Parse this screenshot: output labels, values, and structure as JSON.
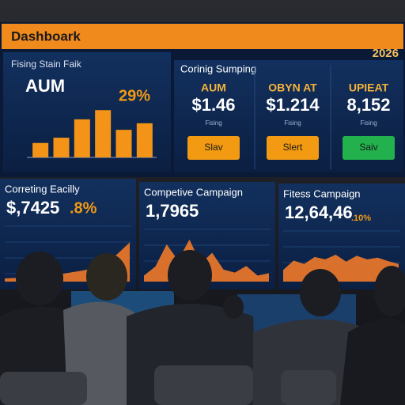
{
  "header": {
    "title": "Dashboark",
    "year": "2026"
  },
  "main_panel": {
    "title": "Fising Stain Faik",
    "metric": "AUM",
    "change": "29%",
    "chart": {
      "type": "bar",
      "values": [
        22,
        30,
        58,
        72,
        42,
        52
      ],
      "ylim": [
        0,
        100
      ]
    }
  },
  "kpi_section": {
    "title": "Corinig Sumping"
  },
  "kpis": [
    {
      "label": "AUM",
      "value": "$1.46",
      "sub": "Fising",
      "button": "Slav",
      "button_color": "#f29a12"
    },
    {
      "label": "OBYN AT",
      "value": "$1.214",
      "sub": "Fising",
      "button": "Slert",
      "button_color": "#f29a12"
    },
    {
      "label": "UPIEAT",
      "value": "8,152",
      "sub": "Fising",
      "button": "Saiv",
      "button_color": "#22b14c"
    }
  ],
  "campaigns": [
    {
      "title": "Correting Eacilly",
      "value": "$,7425",
      "change": ".8%",
      "chart": {
        "type": "area",
        "values": [
          5,
          6,
          8,
          7,
          10,
          12,
          15,
          18,
          22,
          30,
          45,
          62
        ],
        "ylim": [
          0,
          100
        ]
      }
    },
    {
      "title": "Competive Campaign",
      "value": "1,7965",
      "change": null,
      "chart": {
        "type": "area",
        "values": [
          10,
          25,
          62,
          35,
          70,
          30,
          48,
          20,
          15,
          26,
          10,
          14
        ],
        "ylim": [
          0,
          100
        ]
      }
    },
    {
      "title": "Fitess Campaign",
      "value": "12,64,46",
      "change": ".10%",
      "chart": {
        "type": "area",
        "values": [
          20,
          36,
          30,
          42,
          38,
          46,
          34,
          44,
          38,
          41,
          35,
          30
        ],
        "ylim": [
          0,
          100
        ]
      }
    }
  ]
}
